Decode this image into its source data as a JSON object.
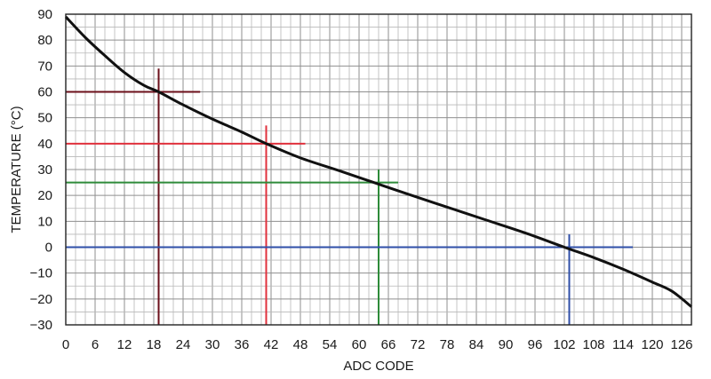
{
  "chart_data": {
    "type": "line",
    "xlabel": "ADC CODE",
    "ylabel": "TEMPERATURE (°C)",
    "xlim": [
      0,
      128
    ],
    "ylim": [
      -30,
      90
    ],
    "x_ticks": [
      0,
      6,
      12,
      18,
      24,
      30,
      36,
      42,
      48,
      54,
      60,
      66,
      72,
      78,
      84,
      90,
      96,
      102,
      108,
      114,
      120,
      126
    ],
    "y_ticks": [
      90,
      80,
      70,
      60,
      50,
      40,
      30,
      20,
      10,
      0,
      -10,
      -20,
      -30
    ],
    "y_tick_labels": [
      "90",
      "80",
      "70",
      "60",
      "50",
      "40",
      "30",
      "20",
      "10",
      "0",
      "−10",
      "−20",
      "−30"
    ],
    "grid": true,
    "minor_grid_x_step": 2,
    "minor_grid_y_step": 5,
    "curve": {
      "color": "#111111",
      "x": [
        0,
        4,
        8,
        12,
        16,
        19,
        24,
        30,
        36,
        41,
        48,
        56,
        63,
        70,
        78,
        86,
        94,
        102,
        108,
        114,
        120,
        124,
        128
      ],
      "y": [
        89,
        81,
        74,
        67.5,
        62.5,
        60,
        55,
        49.5,
        44.5,
        40,
        34.5,
        29.5,
        25,
        20.5,
        15.5,
        10.5,
        5.5,
        0,
        -4,
        -8.5,
        -13.5,
        -17,
        -23
      ]
    },
    "reference_lines": [
      {
        "color": "#6b0f1a",
        "x": 19,
        "y": 60,
        "h_to": 27.5,
        "v_to": 69
      },
      {
        "color": "#e0303c",
        "x": 41,
        "y": 40,
        "h_to": 49,
        "v_to": 47
      },
      {
        "color": "#2e8b3a",
        "x": 64,
        "y": 25,
        "h_to": 68,
        "v_to": 30
      },
      {
        "color": "#2f4fa8",
        "x": 103,
        "y": 0,
        "h_to": 116,
        "v_to": 5
      }
    ]
  }
}
